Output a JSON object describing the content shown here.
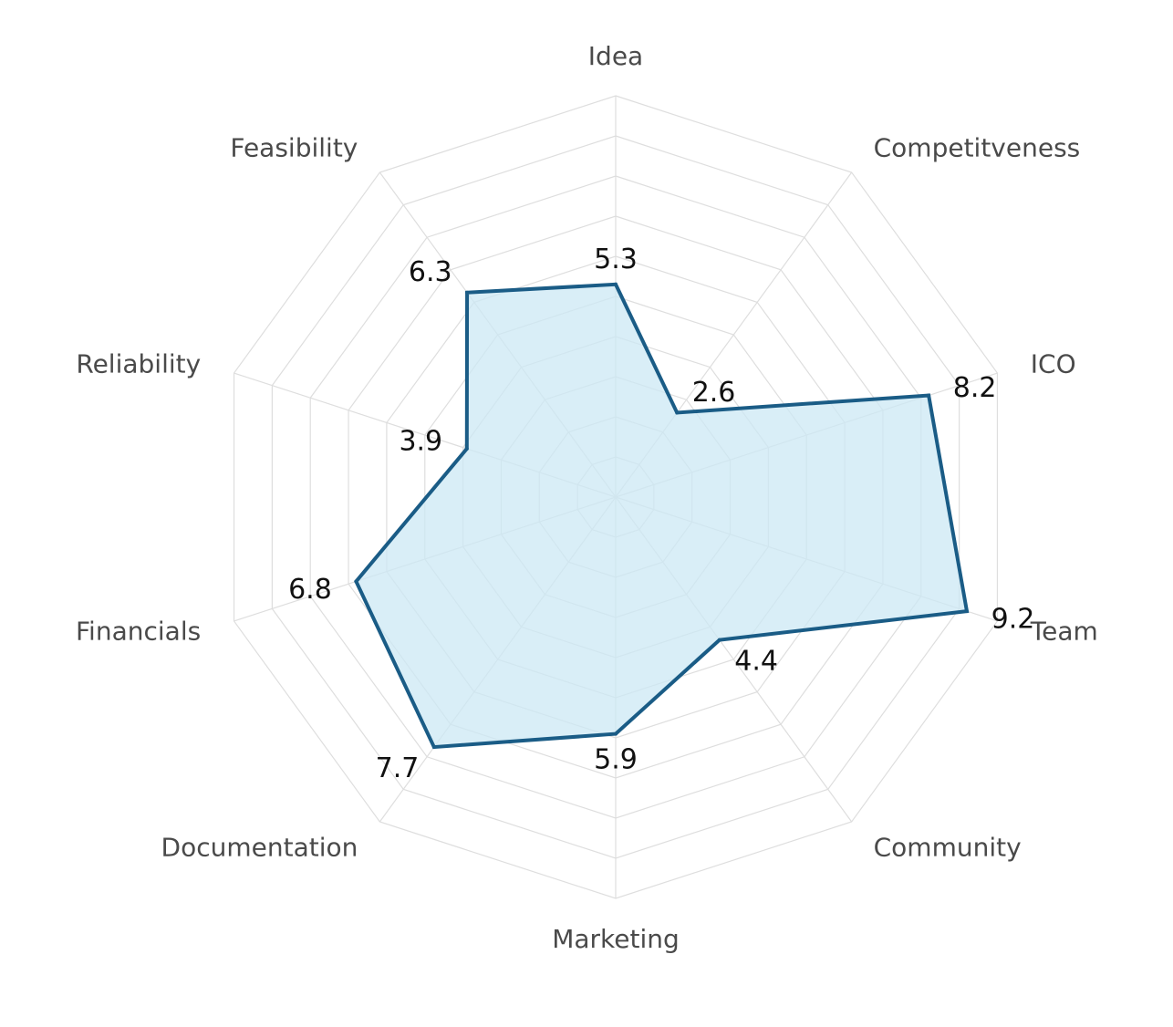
{
  "chart_data": {
    "type": "radar",
    "title": "",
    "categories": [
      "Idea",
      "Competitveness",
      "ICO",
      "Team",
      "Community",
      "Marketing",
      "Documentation",
      "Financials",
      "Reliability",
      "Feasibility"
    ],
    "values": [
      5.3,
      2.6,
      8.2,
      9.2,
      4.4,
      5.9,
      7.7,
      6.8,
      3.9,
      6.3
    ],
    "value_labels": [
      "5.3",
      "2.6",
      "8.2",
      "9.2",
      "4.4",
      "5.9",
      "7.7",
      "6.8",
      "3.9",
      "6.3"
    ],
    "rlim": [
      0,
      10
    ],
    "grid": true,
    "legend": "none",
    "colors": {
      "line": "#1a5c86",
      "fill": "#cce8f4",
      "grid": "#dedede",
      "axis_text": "#4a4a4a",
      "value_text": "#111111"
    }
  }
}
